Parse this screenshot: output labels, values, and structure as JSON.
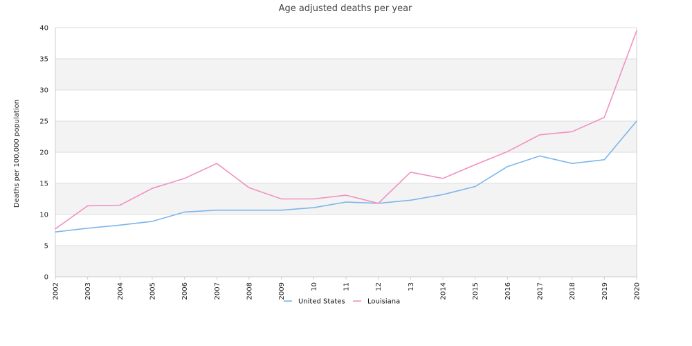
{
  "chart_data": {
    "type": "line",
    "title": "Age adjusted deaths per year",
    "xlabel": "",
    "ylabel": "Deaths per 100,000 population",
    "x": [
      "2002",
      "2003",
      "2004",
      "2005",
      "2006",
      "2007",
      "2008",
      "2009",
      "2010",
      "2011",
      "2012",
      "2013",
      "2014",
      "2015",
      "2016",
      "2017",
      "2018",
      "2019",
      "2020"
    ],
    "x_tick_labels": [
      "2002",
      "2003",
      "2004",
      "2005",
      "2006",
      "2007",
      "2008",
      "2009",
      "10",
      "11",
      "12",
      "13",
      "2014",
      "2015",
      "2016",
      "2017",
      "2018",
      "2019",
      "2020"
    ],
    "ylim": [
      0,
      40
    ],
    "yticks": [
      0,
      5,
      10,
      15,
      20,
      25,
      30,
      35,
      40
    ],
    "grid": true,
    "banded_background": true,
    "legend_position": "bottom-center",
    "series": [
      {
        "name": "United States",
        "color": "#7cb5ec",
        "values": [
          7.2,
          7.8,
          8.3,
          8.9,
          10.4,
          10.7,
          10.7,
          10.7,
          11.1,
          12.0,
          11.8,
          12.3,
          13.2,
          14.5,
          17.7,
          19.4,
          18.2,
          18.8,
          25.0
        ]
      },
      {
        "name": "Louisiana",
        "color": "#f290c0",
        "values": [
          7.7,
          11.4,
          11.5,
          14.2,
          15.8,
          18.2,
          14.3,
          12.5,
          12.5,
          13.1,
          11.8,
          16.8,
          15.8,
          18.0,
          20.1,
          22.8,
          23.3,
          25.6,
          39.5
        ]
      }
    ],
    "colors": {
      "band": "#f3f3f3",
      "gridline": "#dddddd",
      "axis": "#cccccc"
    }
  }
}
